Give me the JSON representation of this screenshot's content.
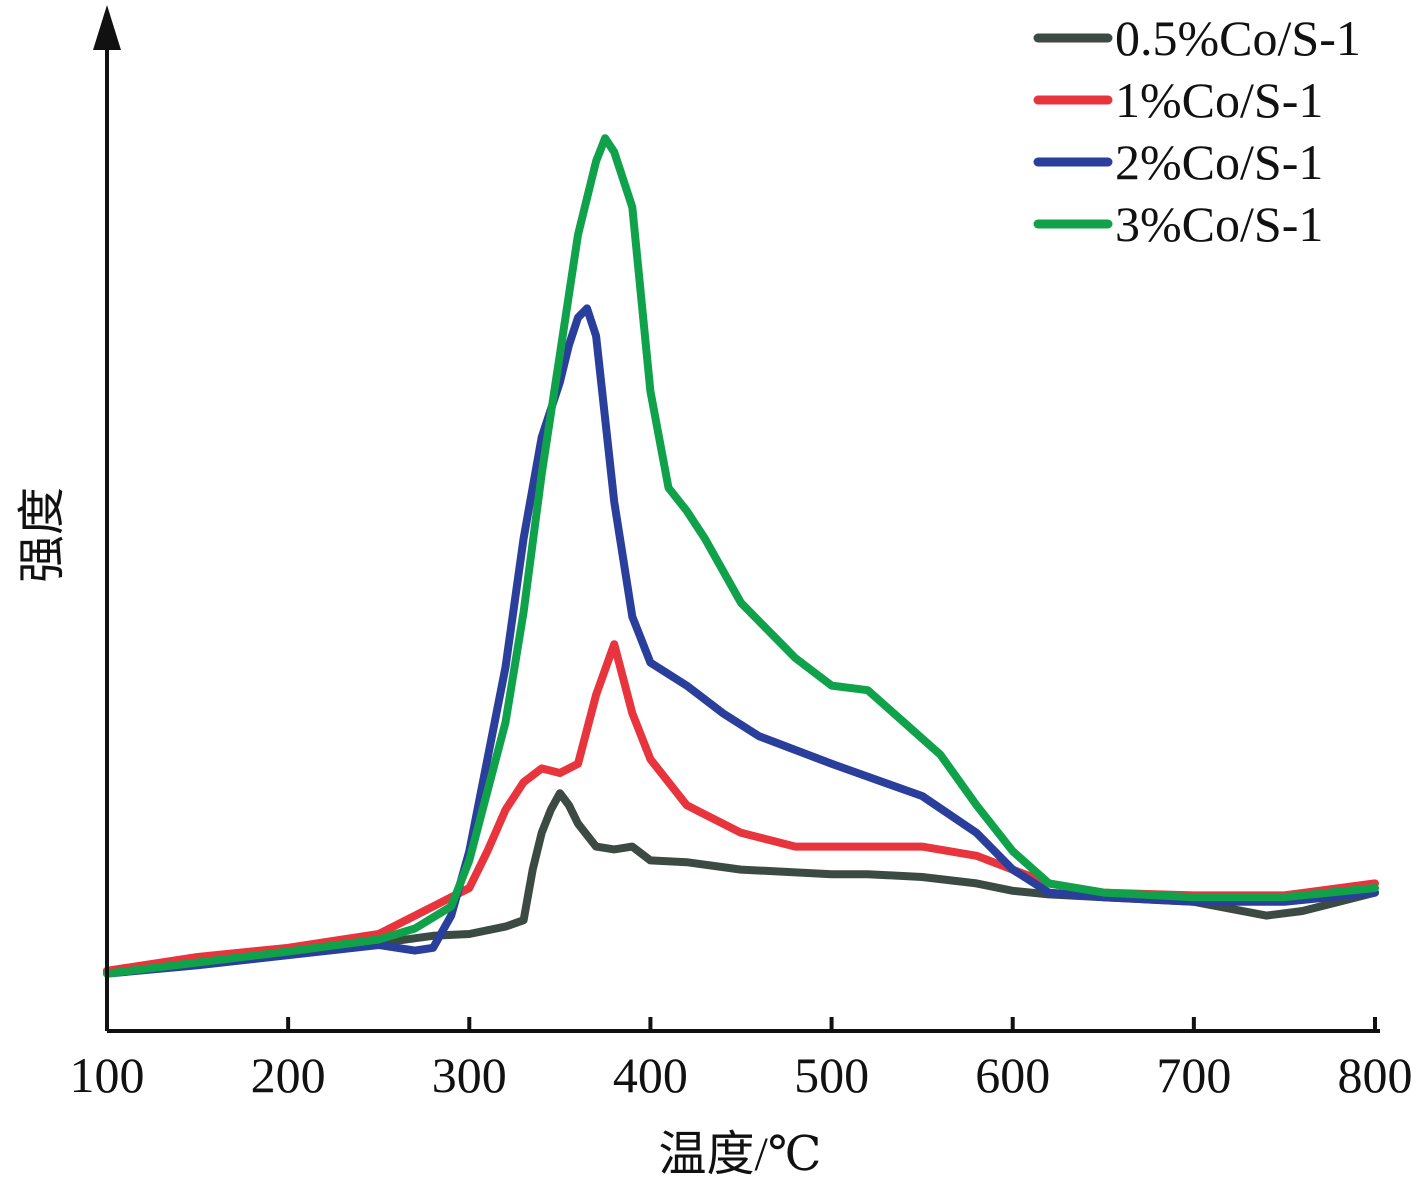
{
  "chart_data": {
    "type": "line",
    "xlabel": "温度/℃",
    "ylabel": "强度",
    "xlim": [
      100,
      800
    ],
    "ylim": [
      0,
      100
    ],
    "xticks": [
      100,
      200,
      300,
      400,
      500,
      600,
      700,
      800
    ],
    "y_tick_labels_shown": false,
    "grid": false,
    "legend": "top-right",
    "series": [
      {
        "name": "0.5%Co/S-1",
        "color": "#3c4a44",
        "x": [
          100,
          150,
          200,
          250,
          280,
          300,
          320,
          330,
          335,
          340,
          345,
          350,
          355,
          360,
          370,
          380,
          390,
          400,
          420,
          450,
          500,
          520,
          550,
          580,
          600,
          620,
          650,
          700,
          740,
          760,
          800
        ],
        "y": [
          1.0,
          2.0,
          3.0,
          4.0,
          4.8,
          5.0,
          5.8,
          6.5,
          12.0,
          16.0,
          18.5,
          20.3,
          19.0,
          17.0,
          14.5,
          14.2,
          14.5,
          13.0,
          12.8,
          12.0,
          11.5,
          11.5,
          11.2,
          10.5,
          9.7,
          9.3,
          9.0,
          8.5,
          7.0,
          7.5,
          9.5
        ]
      },
      {
        "name": "1%Co/S-1",
        "color": "#e8343c",
        "x": [
          100,
          150,
          200,
          250,
          280,
          300,
          310,
          320,
          330,
          340,
          350,
          360,
          370,
          380,
          390,
          400,
          420,
          430,
          450,
          480,
          500,
          550,
          580,
          600,
          620,
          650,
          700,
          750,
          800
        ],
        "y": [
          1.0,
          2.5,
          3.5,
          5.0,
          8.0,
          10.0,
          14.0,
          18.5,
          21.5,
          23.0,
          22.5,
          23.5,
          31.0,
          36.5,
          29.0,
          24.0,
          19.0,
          18.0,
          16.0,
          14.5,
          14.5,
          14.5,
          13.5,
          12.0,
          10.5,
          9.5,
          9.2,
          9.2,
          10.5
        ]
      },
      {
        "name": "2%Co/S-1",
        "color": "#2a3e9c",
        "x": [
          100,
          150,
          200,
          250,
          270,
          280,
          290,
          300,
          320,
          330,
          340,
          350,
          355,
          360,
          365,
          370,
          380,
          390,
          400,
          420,
          440,
          460,
          500,
          550,
          580,
          600,
          620,
          650,
          700,
          750,
          800
        ],
        "y": [
          0.7,
          1.6,
          2.7,
          3.8,
          3.2,
          3.5,
          7.0,
          14.0,
          34.0,
          48.0,
          59.0,
          65.0,
          69.0,
          72.0,
          73.0,
          70.0,
          52.0,
          39.5,
          34.5,
          32.0,
          29.0,
          26.5,
          23.5,
          20.0,
          16.0,
          12.0,
          9.5,
          9.0,
          8.5,
          8.5,
          9.5
        ]
      },
      {
        "name": "3%Co/S-1",
        "color": "#10a24a",
        "x": [
          100,
          150,
          200,
          250,
          270,
          280,
          290,
          300,
          320,
          330,
          340,
          350,
          360,
          370,
          375,
          380,
          390,
          400,
          410,
          420,
          430,
          450,
          480,
          500,
          520,
          540,
          560,
          580,
          600,
          620,
          650,
          700,
          750,
          800
        ],
        "y": [
          0.7,
          1.9,
          3.1,
          4.4,
          5.6,
          6.8,
          8.0,
          13.0,
          28.0,
          40.0,
          55.0,
          68.0,
          81.0,
          89.0,
          91.5,
          90.0,
          84.0,
          64.0,
          53.5,
          51.0,
          48.0,
          41.0,
          35.0,
          32.0,
          31.5,
          28.0,
          24.5,
          19.0,
          14.0,
          10.5,
          9.5,
          9.0,
          9.0,
          10.0
        ]
      }
    ]
  }
}
